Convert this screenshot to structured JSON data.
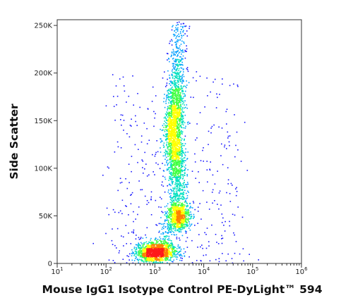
{
  "chart_data": {
    "type": "scatter",
    "subtype": "flow-cytometry density dot plot (pseudocolor)",
    "xlabel": "Mouse IgG1 Isotype Control PE-DyLight™ 594",
    "ylabel": "Side Scatter",
    "x_scale": "log",
    "xlim": [
      10,
      1000000
    ],
    "x_tick_values": [
      10,
      100,
      1000,
      10000,
      100000,
      1000000
    ],
    "x_tick_labels": [
      {
        "base": "10",
        "exp": "1"
      },
      {
        "base": "10",
        "exp": "2"
      },
      {
        "base": "10",
        "exp": "3"
      },
      {
        "base": "10",
        "exp": "4"
      },
      {
        "base": "10",
        "exp": "5"
      },
      {
        "base": "10",
        "exp": "6"
      }
    ],
    "y_scale": "linear",
    "ylim": [
      0,
      256000
    ],
    "y_tick_values": [
      0,
      50000,
      100000,
      150000,
      200000,
      250000
    ],
    "y_tick_labels": [
      "0",
      "50K",
      "100K",
      "150K",
      "200K",
      "250K"
    ],
    "grid": false,
    "legend": "none",
    "density_colors": [
      "#1a1aff",
      "#00a0ff",
      "#00e0c0",
      "#40ff40",
      "#ffff00",
      "#ff8000",
      "#ff1a1a"
    ],
    "populations": [
      {
        "center_x": 1000,
        "center_y": 12000,
        "spread_x_log": 0.2,
        "spread_y": 6000,
        "peak_density": "high"
      },
      {
        "center_x": 2500,
        "center_y": 135000,
        "spread_x_log": 0.09,
        "spread_y": 35000,
        "peak_density": "high"
      },
      {
        "center_x": 3000,
        "center_y": 50000,
        "spread_x_log": 0.12,
        "spread_y": 8000,
        "peak_density": "medium"
      }
    ],
    "density_ridge": [
      {
        "x": 1500,
        "y": 25000
      },
      {
        "x": 2800,
        "y": 55000
      },
      {
        "x": 2900,
        "y": 85000
      },
      {
        "x": 2300,
        "y": 135000
      },
      {
        "x": 2700,
        "y": 185000
      },
      {
        "x": 3300,
        "y": 250000
      }
    ]
  }
}
